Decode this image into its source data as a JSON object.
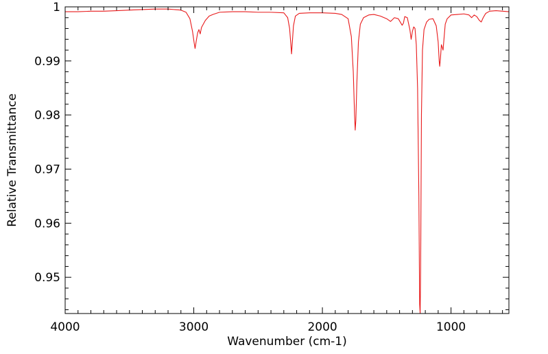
{
  "chart_data": {
    "type": "line",
    "title": "",
    "xlabel": "Wavenumber (cm-1)",
    "ylabel": "Relative Transmittance",
    "xlim": [
      4000,
      550
    ],
    "ylim": [
      0.9433,
      1.0
    ],
    "x_reversed": true,
    "grid": false,
    "legend": "none",
    "x_ticks": [
      {
        "value": 4000,
        "label": "4000"
      },
      {
        "value": 3000,
        "label": "3000"
      },
      {
        "value": 2000,
        "label": "2000"
      },
      {
        "value": 1000,
        "label": "1000"
      }
    ],
    "y_ticks": [
      {
        "value": 1.0,
        "label": "1"
      },
      {
        "value": 0.99,
        "label": "0.99"
      },
      {
        "value": 0.98,
        "label": "0.98"
      },
      {
        "value": 0.97,
        "label": "0.97"
      },
      {
        "value": 0.96,
        "label": "0.96"
      },
      {
        "value": 0.95,
        "label": "0.95"
      }
    ],
    "series": [
      {
        "name": "IR spectrum",
        "color": "#e8191a",
        "points": [
          [
            4000,
            0.9991
          ],
          [
            3900,
            0.9991
          ],
          [
            3800,
            0.9992
          ],
          [
            3700,
            0.9992
          ],
          [
            3600,
            0.9993
          ],
          [
            3500,
            0.9994
          ],
          [
            3400,
            0.9995
          ],
          [
            3300,
            0.9996
          ],
          [
            3200,
            0.9996
          ],
          [
            3100,
            0.9994
          ],
          [
            3060,
            0.999
          ],
          [
            3030,
            0.9978
          ],
          [
            3010,
            0.9955
          ],
          [
            2998,
            0.9935
          ],
          [
            2990,
            0.9923
          ],
          [
            2980,
            0.9938
          ],
          [
            2970,
            0.9952
          ],
          [
            2960,
            0.9958
          ],
          [
            2950,
            0.995
          ],
          [
            2940,
            0.9962
          ],
          [
            2910,
            0.9975
          ],
          [
            2880,
            0.9983
          ],
          [
            2850,
            0.9986
          ],
          [
            2800,
            0.999
          ],
          [
            2700,
            0.9991
          ],
          [
            2600,
            0.9991
          ],
          [
            2500,
            0.999
          ],
          [
            2400,
            0.999
          ],
          [
            2300,
            0.9989
          ],
          [
            2270,
            0.998
          ],
          [
            2255,
            0.996
          ],
          [
            2245,
            0.993
          ],
          [
            2240,
            0.9913
          ],
          [
            2235,
            0.993
          ],
          [
            2225,
            0.9965
          ],
          [
            2210,
            0.9983
          ],
          [
            2180,
            0.9988
          ],
          [
            2100,
            0.9989
          ],
          [
            2000,
            0.9989
          ],
          [
            1900,
            0.9988
          ],
          [
            1850,
            0.9986
          ],
          [
            1800,
            0.9978
          ],
          [
            1775,
            0.9945
          ],
          [
            1760,
            0.988
          ],
          [
            1750,
            0.98
          ],
          [
            1745,
            0.9772
          ],
          [
            1740,
            0.979
          ],
          [
            1732,
            0.986
          ],
          [
            1720,
            0.9935
          ],
          [
            1705,
            0.9968
          ],
          [
            1680,
            0.998
          ],
          [
            1640,
            0.9985
          ],
          [
            1600,
            0.9986
          ],
          [
            1550,
            0.9983
          ],
          [
            1500,
            0.9978
          ],
          [
            1470,
            0.9973
          ],
          [
            1440,
            0.998
          ],
          [
            1410,
            0.9978
          ],
          [
            1380,
            0.9966
          ],
          [
            1370,
            0.997
          ],
          [
            1360,
            0.9982
          ],
          [
            1340,
            0.998
          ],
          [
            1320,
            0.9958
          ],
          [
            1310,
            0.994
          ],
          [
            1300,
            0.9955
          ],
          [
            1290,
            0.9963
          ],
          [
            1280,
            0.996
          ],
          [
            1270,
            0.993
          ],
          [
            1260,
            0.985
          ],
          [
            1250,
            0.965
          ],
          [
            1244,
            0.945
          ],
          [
            1240,
            0.9433
          ],
          [
            1236,
            0.952
          ],
          [
            1230,
            0.98
          ],
          [
            1222,
            0.992
          ],
          [
            1210,
            0.9958
          ],
          [
            1190,
            0.9972
          ],
          [
            1170,
            0.9977
          ],
          [
            1140,
            0.9978
          ],
          [
            1115,
            0.9965
          ],
          [
            1100,
            0.9935
          ],
          [
            1092,
            0.99
          ],
          [
            1088,
            0.989
          ],
          [
            1082,
            0.9905
          ],
          [
            1075,
            0.993
          ],
          [
            1068,
            0.9925
          ],
          [
            1062,
            0.992
          ],
          [
            1055,
            0.994
          ],
          [
            1045,
            0.9968
          ],
          [
            1030,
            0.9978
          ],
          [
            1000,
            0.9985
          ],
          [
            950,
            0.9986
          ],
          [
            900,
            0.9987
          ],
          [
            860,
            0.9985
          ],
          [
            840,
            0.998
          ],
          [
            820,
            0.9985
          ],
          [
            800,
            0.9982
          ],
          [
            780,
            0.9975
          ],
          [
            765,
            0.9972
          ],
          [
            750,
            0.998
          ],
          [
            730,
            0.9988
          ],
          [
            700,
            0.9992
          ],
          [
            650,
            0.9993
          ],
          [
            600,
            0.9992
          ],
          [
            550,
            0.9991
          ]
        ]
      }
    ]
  }
}
